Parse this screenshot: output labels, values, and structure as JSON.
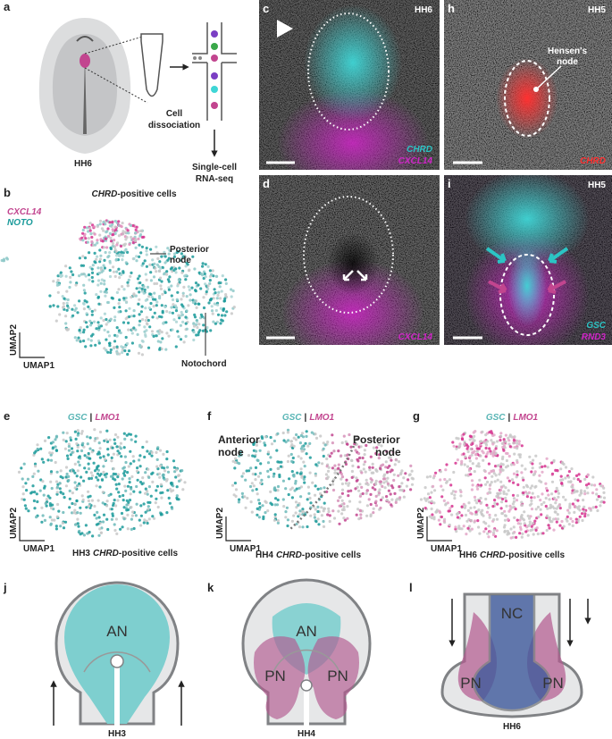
{
  "panels": {
    "a": {
      "label": "a",
      "stage": "HH6",
      "dissociation": [
        "Cell",
        "dissociation"
      ],
      "sequencing": [
        "Single-cell",
        "RNA-seq"
      ]
    },
    "b": {
      "label": "b",
      "title": {
        "gene": "CHRD",
        "suffix": "-positive cells"
      },
      "legend": [
        "CXCL14",
        "NOTO"
      ],
      "posterior_node": [
        "Posterior",
        "node"
      ],
      "notochord": "Notochord",
      "axes": [
        "UMAP2",
        "UMAP1"
      ]
    },
    "c": {
      "label": "c",
      "stage": "HH6",
      "genes": [
        "CHRD",
        "CXCL14"
      ]
    },
    "d": {
      "label": "d",
      "genes": [
        "CXCL14"
      ]
    },
    "h": {
      "label": "h",
      "stage": "HH5",
      "annotation": [
        "Hensen's",
        "node"
      ],
      "genes": [
        "CHRD"
      ]
    },
    "i": {
      "label": "i",
      "stage": "HH5",
      "genes": [
        "GSC",
        "RND3"
      ]
    },
    "e": {
      "label": "e",
      "legend": [
        "GSC",
        "|",
        "LMO1"
      ],
      "axes": [
        "UMAP2",
        "UMAP1"
      ],
      "caption": {
        "stage": "HH3",
        "gene": "CHRD",
        "suffix": "-positive cells"
      }
    },
    "f": {
      "label": "f",
      "legend": [
        "GSC",
        "|",
        "LMO1"
      ],
      "annotations": [
        [
          "Anterior",
          "node"
        ],
        [
          "Posterior",
          "node"
        ]
      ],
      "axes": [
        "UMAP2",
        "UMAP1"
      ],
      "caption": {
        "stage": "HH4",
        "gene": "CHRD",
        "suffix": "-positive cells"
      }
    },
    "g": {
      "label": "g",
      "legend": [
        "GSC",
        "|",
        "LMO1"
      ],
      "axes": [
        "UMAP2",
        "UMAP1"
      ],
      "caption": {
        "stage": "HH6",
        "gene": "CHRD",
        "suffix": "-positive cells"
      }
    },
    "j": {
      "label": "j",
      "regions": [
        "AN"
      ],
      "stage": "HH3"
    },
    "k": {
      "label": "k",
      "regions": [
        "AN",
        "PN",
        "PN"
      ],
      "stage": "HH4"
    },
    "l": {
      "label": "l",
      "regions": [
        "NC",
        "PN",
        "PN"
      ],
      "stage": "HH6"
    }
  }
}
